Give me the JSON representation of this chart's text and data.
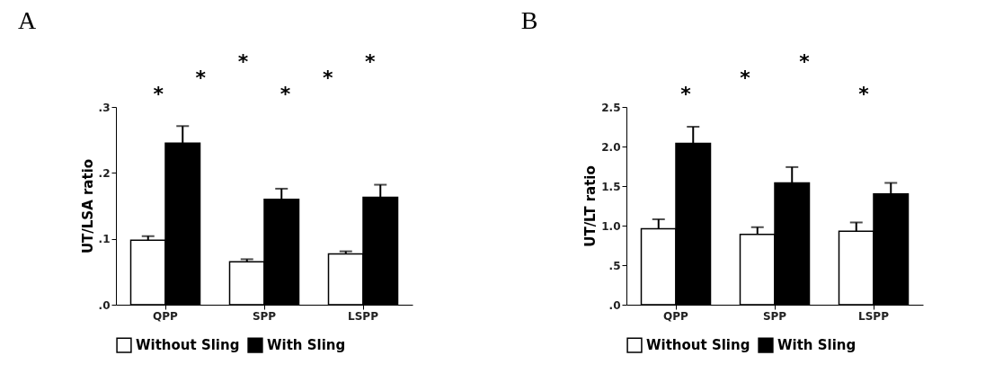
{
  "chart_data": [
    {
      "type": "bar",
      "title": "A",
      "ylabel": "UT/LSA ratio",
      "categories": [
        "QPP",
        "SPP",
        "LSPP"
      ],
      "series": [
        {
          "name": "Without Sling",
          "color": "#ffffff",
          "values": [
            0.098,
            0.065,
            0.077
          ],
          "errors": [
            [
              0.098,
              0.104
            ],
            [
              0.065,
              0.069
            ],
            [
              0.077,
              0.081
            ]
          ]
        },
        {
          "name": "With Sling",
          "color": "#000000",
          "values": [
            0.245,
            0.16,
            0.163
          ],
          "errors": [
            [
              0.245,
              0.271
            ],
            [
              0.16,
              0.176
            ],
            [
              0.163,
              0.182
            ]
          ]
        }
      ],
      "ylim": [
        0,
        0.3
      ],
      "yticks": [
        {
          "value": 0,
          "label": ".0"
        },
        {
          "value": 0.1,
          "label": ".1"
        },
        {
          "value": 0.2,
          "label": ".2"
        },
        {
          "value": 0.3,
          "label": ".3"
        }
      ],
      "legend": "bottom",
      "annotations": [
        "*",
        "*",
        "*",
        "*",
        "*",
        "*"
      ]
    },
    {
      "type": "bar",
      "title": "B",
      "ylabel": "UT/LT ratio",
      "categories": [
        "QPP",
        "SPP",
        "LSPP"
      ],
      "series": [
        {
          "name": "Without Sling",
          "color": "#ffffff",
          "values": [
            0.96,
            0.89,
            0.93
          ],
          "errors": [
            [
              0.96,
              1.08
            ],
            [
              0.89,
              0.98
            ],
            [
              0.93,
              1.04
            ]
          ]
        },
        {
          "name": "With Sling",
          "color": "#000000",
          "values": [
            2.04,
            1.54,
            1.4
          ],
          "errors": [
            [
              2.04,
              2.25
            ],
            [
              1.54,
              1.74
            ],
            [
              1.4,
              1.54
            ]
          ]
        }
      ],
      "ylim": [
        0,
        2.5
      ],
      "yticks": [
        {
          "value": 0,
          "label": ".0"
        },
        {
          "value": 0.5,
          "label": ".5"
        },
        {
          "value": 1,
          "label": "1.0"
        },
        {
          "value": 1.5,
          "label": "1.5"
        },
        {
          "value": 2,
          "label": "2.0"
        },
        {
          "value": 2.5,
          "label": "2.5"
        }
      ],
      "legend": "bottom",
      "annotations": [
        "*",
        "*",
        "*",
        "*"
      ]
    }
  ]
}
